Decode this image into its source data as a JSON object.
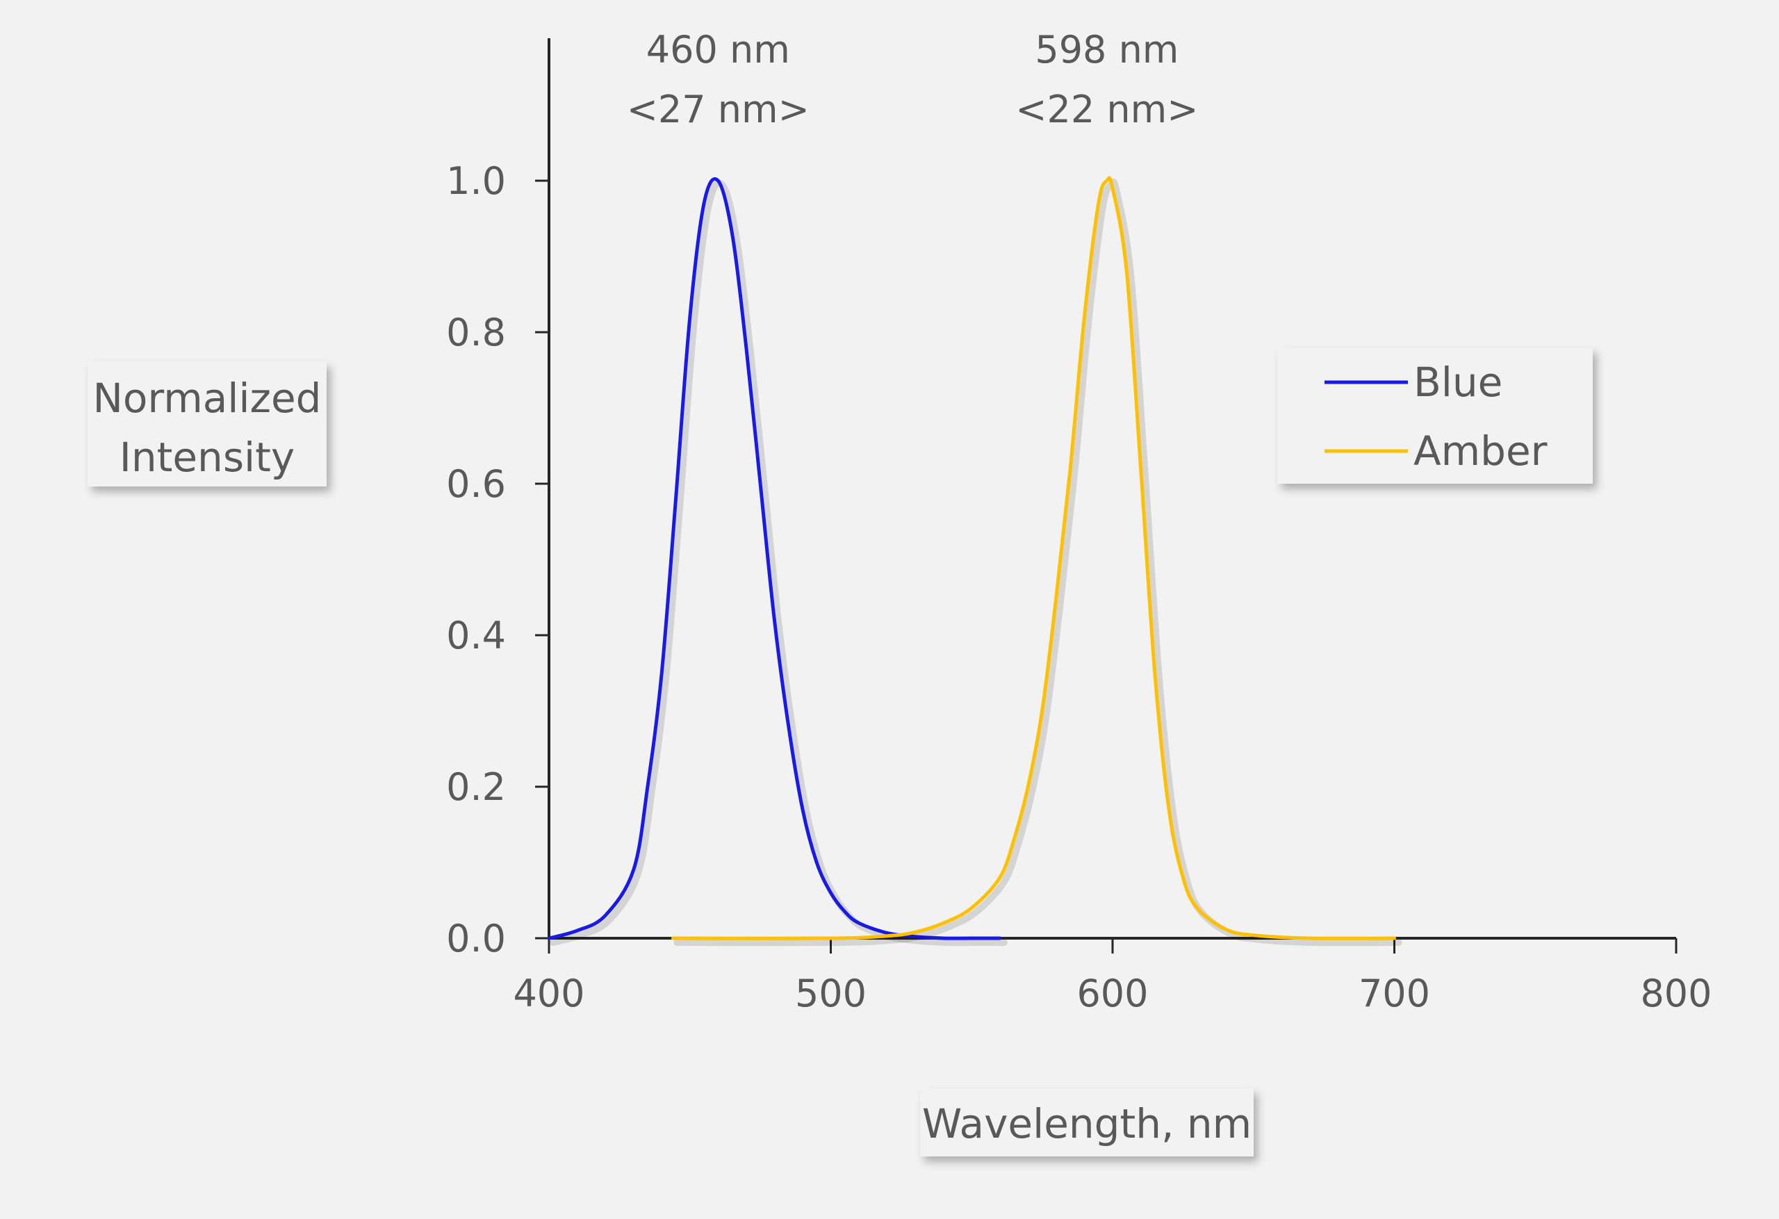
{
  "chart_data": {
    "type": "line",
    "title": "",
    "xlabel": "Wavelength, nm",
    "ylabel": [
      "Normalized",
      "Intensity"
    ],
    "xlim": [
      400,
      800
    ],
    "ylim": [
      0,
      1.0
    ],
    "x_ticks": [
      "400",
      "500",
      "600",
      "700",
      "800"
    ],
    "y_ticks": [
      "0.0",
      "0.2",
      "0.4",
      "0.6",
      "0.8",
      "1.0"
    ],
    "grid": false,
    "legend_position": "right",
    "series": [
      {
        "name": "Blue",
        "color": "#1a1ae6",
        "x": [
          400,
          410,
          420,
          430,
          435,
          440,
          445,
          450,
          455,
          460,
          465,
          470,
          475,
          480,
          485,
          490,
          495,
          500,
          505,
          510,
          520,
          530,
          540,
          550,
          560
        ],
        "y": [
          0.0,
          0.01,
          0.03,
          0.09,
          0.2,
          0.35,
          0.58,
          0.82,
          0.97,
          1.0,
          0.93,
          0.78,
          0.6,
          0.42,
          0.28,
          0.17,
          0.1,
          0.06,
          0.035,
          0.02,
          0.007,
          0.002,
          0.0,
          0.0,
          0.0
        ]
      },
      {
        "name": "Amber",
        "color": "#ffc000",
        "x": [
          444,
          500,
          520,
          530,
          540,
          550,
          560,
          565,
          570,
          575,
          580,
          585,
          590,
          595,
          598,
          600,
          605,
          610,
          615,
          620,
          625,
          630,
          640,
          650,
          670,
          700
        ],
        "y": [
          0.0,
          0.0,
          0.003,
          0.008,
          0.02,
          0.04,
          0.08,
          0.13,
          0.2,
          0.3,
          0.45,
          0.62,
          0.82,
          0.97,
          1.0,
          0.99,
          0.88,
          0.62,
          0.35,
          0.17,
          0.08,
          0.04,
          0.012,
          0.004,
          0.0,
          0.0
        ]
      }
    ],
    "annotations": [
      {
        "x": 460,
        "lines": [
          "460 nm",
          "<27 nm>"
        ]
      },
      {
        "x": 598,
        "lines": [
          "598 nm",
          "<22 nm>"
        ]
      }
    ]
  }
}
